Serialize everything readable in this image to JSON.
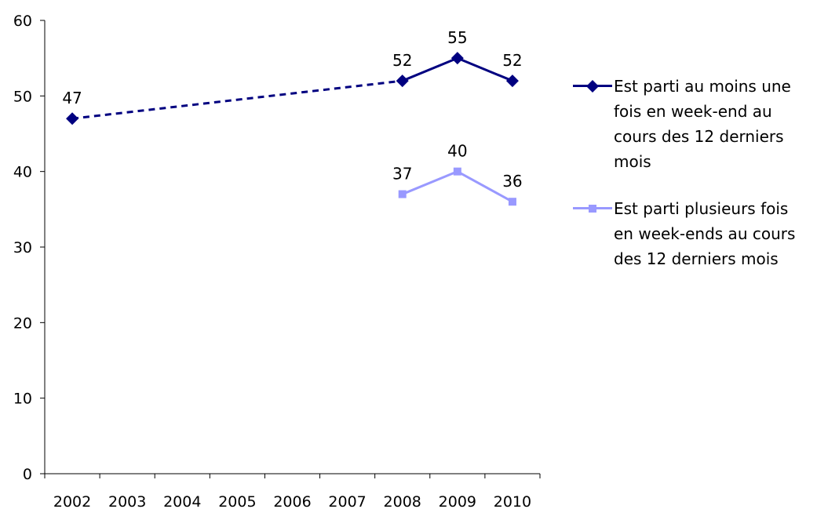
{
  "chart_data": {
    "type": "line",
    "categories": [
      "2002",
      "2003",
      "2004",
      "2005",
      "2006",
      "2007",
      "2008",
      "2009",
      "2010"
    ],
    "ylim": [
      0,
      60
    ],
    "yticks": [
      0,
      10,
      20,
      30,
      40,
      50,
      60
    ],
    "grid": false,
    "legend_position": "right",
    "series": [
      {
        "name": "Est parti au moins une fois en week-end au cours des 12 derniers mois",
        "color": "#000080",
        "marker": "diamond",
        "values": [
          47,
          null,
          null,
          null,
          null,
          null,
          52,
          55,
          52
        ],
        "dashed_segments": [
          [
            0,
            6
          ]
        ]
      },
      {
        "name": "Est parti plusieurs fois en week-ends au cours des 12 derniers mois",
        "color": "#9999ff",
        "marker": "square",
        "values": [
          null,
          null,
          null,
          null,
          null,
          null,
          37,
          40,
          36
        ],
        "dashed_segments": []
      }
    ]
  }
}
